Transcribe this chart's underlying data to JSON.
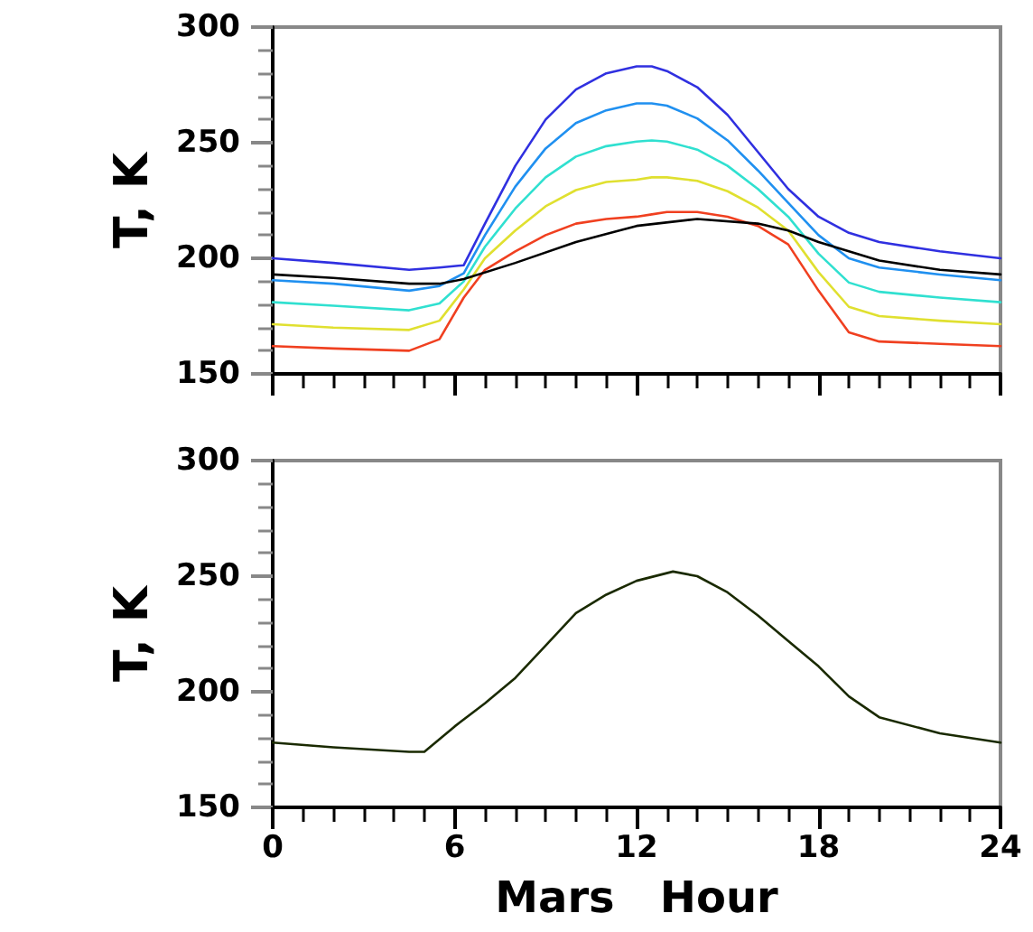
{
  "chart_data": [
    {
      "type": "line",
      "ylabel": "T, K",
      "xlim": [
        0,
        24
      ],
      "xticks": [
        0,
        6,
        12,
        18,
        24
      ],
      "ylim": [
        150,
        300
      ],
      "yticks": [
        150,
        200,
        250,
        300
      ],
      "tick_labels": "y",
      "series": [
        {
          "color": "#3030e0",
          "x": [
            0,
            2,
            4.5,
            5.5,
            6.3,
            7,
            8,
            9,
            10,
            11,
            12,
            12.5,
            13,
            14,
            15,
            16,
            17,
            18,
            19,
            20,
            22,
            24
          ],
          "values": [
            200,
            198,
            195,
            196,
            197,
            215,
            240,
            260,
            273,
            280,
            283,
            283,
            281,
            274,
            262,
            246,
            230,
            218,
            211,
            207,
            203,
            200
          ]
        },
        {
          "color": "#2090f0",
          "x": [
            0,
            2,
            4.5,
            5.5,
            6.3,
            7,
            8,
            9,
            10,
            11,
            12,
            12.5,
            13,
            14,
            15,
            16,
            17,
            18,
            19,
            20,
            22,
            24
          ],
          "values": [
            190.5,
            189,
            186,
            188,
            193.5,
            210,
            231,
            247.5,
            258.5,
            264,
            267,
            267,
            266,
            260.5,
            251,
            238,
            224,
            210,
            200,
            196,
            193,
            190.5
          ]
        },
        {
          "color": "#30e0d0",
          "x": [
            0,
            2,
            4.5,
            5.5,
            6.3,
            7,
            8,
            9,
            10,
            11,
            12,
            12.5,
            13,
            14,
            15,
            16,
            17,
            18,
            19,
            20,
            22,
            24
          ],
          "values": [
            181,
            179.5,
            177.5,
            180.5,
            190,
            205,
            221.5,
            235,
            244,
            248.5,
            250.5,
            251,
            250.5,
            247,
            240,
            230,
            218,
            202,
            189.5,
            185.5,
            183,
            181
          ]
        },
        {
          "color": "#e0e030",
          "x": [
            0,
            2,
            4.5,
            5.5,
            6.3,
            7,
            8,
            9,
            10,
            11,
            12,
            12.5,
            13,
            14,
            15,
            16,
            17,
            18,
            19,
            20,
            22,
            24
          ],
          "values": [
            171.5,
            170,
            169,
            173,
            186.5,
            200,
            212,
            222.5,
            229.5,
            233,
            234,
            235,
            235,
            233.5,
            229,
            222,
            212,
            194,
            179,
            175,
            173,
            171.5
          ]
        },
        {
          "color": "#f04020",
          "x": [
            0,
            2,
            4.5,
            5.5,
            6.3,
            7,
            8,
            9,
            10,
            11,
            12,
            12.5,
            13,
            14,
            15,
            16,
            17,
            18,
            19,
            20,
            22,
            24
          ],
          "values": [
            162,
            161,
            160,
            165,
            183,
            195,
            203,
            210,
            215,
            217,
            218,
            219,
            220,
            220,
            218,
            214,
            206,
            186,
            168,
            164,
            163,
            162
          ]
        },
        {
          "color": "#000000",
          "x": [
            0,
            2,
            4.5,
            5.5,
            6.3,
            8,
            10,
            12,
            14,
            16,
            17,
            18,
            20,
            22,
            24
          ],
          "values": [
            193,
            191.5,
            189,
            189,
            191,
            198,
            207,
            214,
            217,
            215,
            212,
            207,
            199,
            195,
            193
          ]
        }
      ]
    },
    {
      "type": "line",
      "xlabel": "Mars   Hour",
      "ylabel": "T, K",
      "xlim": [
        0,
        24
      ],
      "xticks": [
        0,
        6,
        12,
        18,
        24
      ],
      "ylim": [
        150,
        300
      ],
      "yticks": [
        150,
        200,
        250,
        300
      ],
      "series": [
        {
          "color": "#1a2a00",
          "x": [
            0,
            2,
            4.5,
            5,
            6,
            7,
            8,
            9,
            10,
            11,
            12,
            13.2,
            14,
            15,
            16,
            17,
            18,
            19,
            20,
            22,
            24
          ],
          "values": [
            178,
            176,
            174,
            174,
            185,
            195,
            206,
            220,
            234,
            242,
            248,
            252,
            250,
            243,
            233,
            222,
            211,
            198,
            189,
            182,
            178
          ]
        }
      ]
    }
  ]
}
